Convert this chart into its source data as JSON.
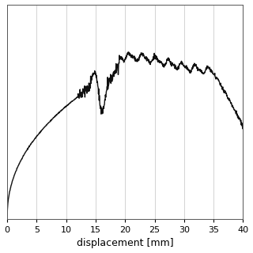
{
  "xlabel": "displacement [mm]",
  "xlim": [
    0,
    40
  ],
  "ylim": [
    0,
    1.0
  ],
  "xticks": [
    0,
    5,
    10,
    15,
    20,
    25,
    30,
    35,
    40
  ],
  "grid_color": "#cccccc",
  "grid_linewidth": 0.6,
  "line_color": "#111111",
  "line_width": 1.0,
  "bg_color": "#ffffff",
  "xlabel_fontsize": 9,
  "tick_fontsize": 8
}
